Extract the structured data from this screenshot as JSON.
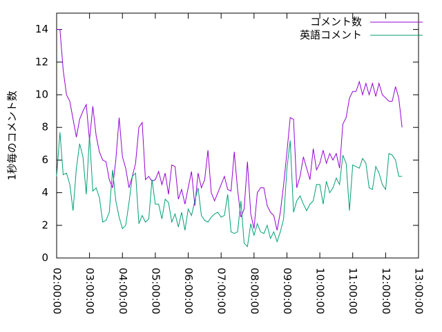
{
  "chart_data": {
    "type": "line",
    "ylabel": "1秒毎のコメント数",
    "x": [
      "02:00:00",
      "02:06:00",
      "02:12:00",
      "02:18:00",
      "02:24:00",
      "02:30:00",
      "02:36:00",
      "02:42:00",
      "02:48:00",
      "02:54:00",
      "03:00:00",
      "03:06:00",
      "03:12:00",
      "03:18:00",
      "03:24:00",
      "03:30:00",
      "03:36:00",
      "03:42:00",
      "03:48:00",
      "03:54:00",
      "04:00:00",
      "04:06:00",
      "04:12:00",
      "04:18:00",
      "04:24:00",
      "04:30:00",
      "04:36:00",
      "04:42:00",
      "04:48:00",
      "04:54:00",
      "05:00:00",
      "05:06:00",
      "05:12:00",
      "05:18:00",
      "05:24:00",
      "05:30:00",
      "05:36:00",
      "05:42:00",
      "05:48:00",
      "05:54:00",
      "06:00:00",
      "06:06:00",
      "06:12:00",
      "06:18:00",
      "06:24:00",
      "06:30:00",
      "06:36:00",
      "06:42:00",
      "06:48:00",
      "06:54:00",
      "07:00:00",
      "07:06:00",
      "07:12:00",
      "07:18:00",
      "07:24:00",
      "07:30:00",
      "07:36:00",
      "07:42:00",
      "07:48:00",
      "07:54:00",
      "08:00:00",
      "08:06:00",
      "08:12:00",
      "08:18:00",
      "08:24:00",
      "08:30:00",
      "08:36:00",
      "08:42:00",
      "08:48:00",
      "08:54:00",
      "09:00:00",
      "09:06:00",
      "09:12:00",
      "09:18:00",
      "09:24:00",
      "09:30:00",
      "09:36:00",
      "09:42:00",
      "09:48:00",
      "09:54:00",
      "10:00:00",
      "10:06:00",
      "10:12:00",
      "10:18:00",
      "10:24:00",
      "10:30:00",
      "10:36:00",
      "10:42:00",
      "10:48:00",
      "10:54:00",
      "11:00:00",
      "11:06:00",
      "11:12:00",
      "11:18:00",
      "11:24:00",
      "11:30:00",
      "11:36:00",
      "11:42:00",
      "11:48:00",
      "11:54:00",
      "12:00:00",
      "12:06:00",
      "12:12:00",
      "12:18:00",
      "12:24:00",
      "12:30:00"
    ],
    "series": [
      {
        "name": "コメント数",
        "color": "#9400d3",
        "values": [
          14,
          14,
          11.5,
          10,
          9.6,
          8.5,
          7.4,
          8.5,
          9,
          9.4,
          7.2,
          9.3,
          7.5,
          6.5,
          6,
          5.9,
          4.8,
          4.3,
          6,
          8.6,
          6.2,
          5.5,
          4.3,
          5,
          5.8,
          8,
          8.3,
          4.8,
          5,
          4.7,
          4.8,
          5.3,
          4.5,
          5.2,
          3.9,
          5.7,
          5.6,
          3.6,
          4.2,
          3.3,
          4.3,
          5.3,
          3.2,
          5.2,
          4.3,
          4.8,
          6.6,
          4,
          3.5,
          4,
          4.5,
          5,
          4.2,
          4.1,
          6.5,
          4.2,
          2.5,
          3,
          5.9,
          2.7,
          1.8,
          4,
          4.3,
          4.3,
          3.2,
          2.8,
          2.6,
          1.7,
          2.8,
          4.5,
          6.5,
          8.6,
          8.5,
          4.3,
          5,
          6.2,
          5.5,
          4.8,
          6.7,
          5.4,
          5.8,
          6.6,
          5.8,
          6.4,
          6,
          6.4,
          5.5,
          8.2,
          8.6,
          9.8,
          10.2,
          10.2,
          10.8,
          10,
          10.7,
          10,
          10.7,
          9.9,
          10.7,
          10,
          9.8,
          9.6,
          9.6,
          10.5,
          9.8,
          8
        ]
      },
      {
        "name": "英語コメント",
        "color": "#009e73",
        "values": [
          5,
          7.7,
          5.1,
          5.2,
          4.5,
          2.9,
          5.5,
          7,
          6.2,
          3.9,
          7.5,
          4.1,
          4.3,
          3.7,
          2.2,
          2.3,
          2.8,
          5.4,
          3.5,
          2.5,
          1.8,
          2,
          3.4,
          5,
          5.2,
          2.1,
          2.6,
          2.2,
          2.4,
          4.8,
          3.3,
          3.3,
          2.4,
          3.6,
          3.4,
          2.2,
          2.7,
          1.9,
          2.8,
          1.7,
          3,
          2.6,
          3.5,
          4.3,
          2.6,
          2.3,
          2.2,
          2.5,
          2.7,
          2.8,
          2.5,
          2.6,
          3.9,
          1.6,
          1.5,
          1.6,
          3.5,
          0.9,
          0.7,
          2.1,
          1.4,
          2.1,
          1.6,
          1.5,
          2,
          1.2,
          1.6,
          1,
          1.6,
          2.4,
          5.5,
          7.2,
          2.8,
          3.5,
          3.8,
          3.3,
          2.9,
          3.3,
          3.5,
          4.5,
          4.5,
          3.3,
          4.7,
          4,
          4.3,
          4.9,
          4.5,
          6.3,
          5.8,
          2.9,
          5.7,
          5.6,
          5.5,
          6.1,
          5.8,
          4.3,
          4.2,
          5.6,
          5.2,
          4.5,
          4.2,
          6.4,
          6.3,
          6,
          5,
          5
        ]
      }
    ],
    "xlim": [
      "02:00:00",
      "13:00:00"
    ],
    "xticks": [
      "02:00:00",
      "03:00:00",
      "04:00:00",
      "05:00:00",
      "06:00:00",
      "07:00:00",
      "08:00:00",
      "09:00:00",
      "10:00:00",
      "11:00:00",
      "12:00:00",
      "13:00:00"
    ],
    "ylim": [
      0,
      15
    ],
    "yticks": [
      0,
      2,
      4,
      6,
      8,
      10,
      12,
      14
    ],
    "legend": "top-right"
  }
}
